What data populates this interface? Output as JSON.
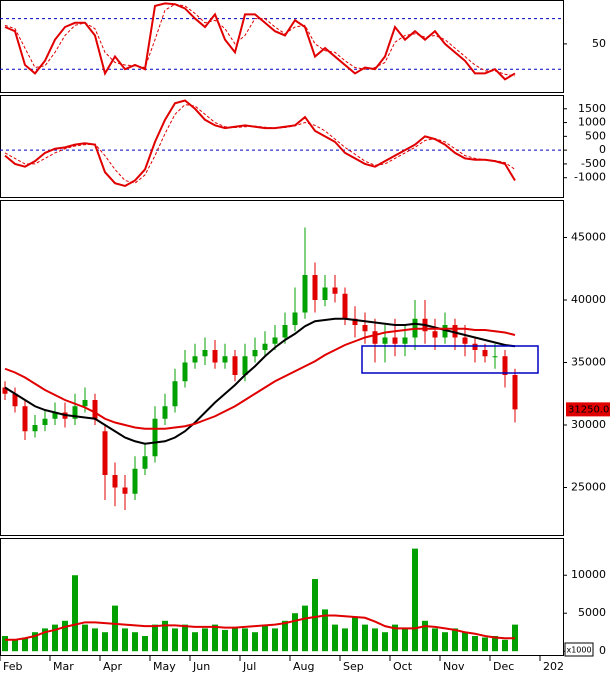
{
  "chart_data": [
    {
      "type": "line",
      "ylim": [
        -7,
        102
      ],
      "yticks": [
        50
      ],
      "hlines": [
        80,
        20
      ],
      "series": [
        {
          "color": "#e00000",
          "dash": false,
          "values": [
            70,
            65,
            25,
            15,
            30,
            55,
            70,
            75,
            75,
            60,
            15,
            35,
            20,
            25,
            20,
            95,
            98,
            97,
            92,
            80,
            70,
            85,
            55,
            40,
            85,
            85,
            75,
            65,
            60,
            78,
            70,
            35,
            45,
            35,
            25,
            15,
            22,
            20,
            35,
            70,
            55,
            65,
            55,
            65,
            50,
            40,
            30,
            15,
            15,
            20,
            8,
            15,
            null,
            null,
            null,
            null
          ]
        },
        {
          "color": "#e00000",
          "dash": true,
          "values": [
            72,
            68,
            45,
            22,
            24,
            40,
            60,
            72,
            75,
            68,
            40,
            28,
            25,
            24,
            22,
            55,
            90,
            97,
            95,
            86,
            75,
            78,
            68,
            50,
            60,
            80,
            80,
            70,
            62,
            70,
            72,
            50,
            42,
            40,
            30,
            22,
            20,
            22,
            28,
            52,
            60,
            62,
            58,
            60,
            55,
            45,
            35,
            25,
            18,
            18,
            14,
            12,
            null,
            null,
            null,
            null
          ]
        }
      ]
    },
    {
      "type": "line",
      "ylim": [
        -1700,
        2000
      ],
      "yticks": [
        1500,
        1000,
        500,
        0,
        -500,
        -1000
      ],
      "hlines": [
        0
      ],
      "series": [
        {
          "color": "#e00000",
          "dash": false,
          "values": [
            -200,
            -500,
            -600,
            -400,
            -100,
            50,
            100,
            200,
            250,
            200,
            -800,
            -1200,
            -1300,
            -1100,
            -700,
            300,
            1100,
            1700,
            1800,
            1500,
            1100,
            900,
            800,
            850,
            900,
            850,
            800,
            800,
            850,
            900,
            1200,
            700,
            500,
            300,
            -100,
            -300,
            -500,
            -600,
            -400,
            -200,
            0,
            200,
            500,
            400,
            200,
            -100,
            -300,
            -350,
            -350,
            -400,
            -500,
            -1100,
            null,
            null,
            null,
            null
          ]
        },
        {
          "color": "#e00000",
          "dash": true,
          "values": [
            -100,
            -300,
            -500,
            -500,
            -300,
            -100,
            50,
            150,
            200,
            220,
            -200,
            -700,
            -1100,
            -1200,
            -900,
            -200,
            600,
            1300,
            1650,
            1600,
            1300,
            1000,
            850,
            820,
            850,
            870,
            830,
            800,
            820,
            880,
            1000,
            900,
            700,
            400,
            100,
            -150,
            -400,
            -550,
            -500,
            -300,
            -100,
            100,
            350,
            420,
            300,
            50,
            -200,
            -300,
            -350,
            -380,
            -450,
            -700,
            null,
            null,
            null,
            null
          ]
        }
      ]
    },
    {
      "type": "candlestick",
      "ylim": [
        21200,
        48000
      ],
      "yticks": [
        45000,
        40000,
        35000,
        30000,
        25000
      ],
      "last_value_label": "31250.00",
      "categories": [
        "Feb",
        null,
        null,
        null,
        null,
        "Mar",
        null,
        null,
        null,
        null,
        "Apr",
        null,
        null,
        null,
        null,
        "May",
        null,
        null,
        null,
        "Jun",
        null,
        null,
        null,
        null,
        "Jul",
        null,
        null,
        null,
        null,
        "Aug",
        null,
        null,
        null,
        null,
        "Sep",
        null,
        null,
        null,
        null,
        "Oct",
        null,
        null,
        null,
        null,
        "Nov",
        null,
        null,
        null,
        null,
        "Dec",
        null,
        null,
        null,
        null,
        "202",
        null
      ],
      "up_color": "#00a000",
      "down_color": "#e00000",
      "open": [
        33000,
        32500,
        31500,
        29500,
        30000,
        30500,
        31000,
        30500,
        31500,
        32000,
        29500,
        26000,
        25000,
        24500,
        26500,
        27500,
        30500,
        31500,
        33500,
        35000,
        35500,
        36000,
        35000,
        35500,
        34000,
        35500,
        36000,
        36500,
        37000,
        38000,
        39000,
        42000,
        40000,
        41000,
        40500,
        38500,
        38000,
        37500,
        36500,
        37000,
        36500,
        37000,
        38500,
        37500,
        37000,
        38000,
        37000,
        36500,
        36000,
        35500,
        35500,
        34000,
        null,
        null,
        null,
        null
      ],
      "high": [
        33500,
        33000,
        32000,
        30800,
        31200,
        31800,
        31800,
        32500,
        33000,
        32500,
        30000,
        27000,
        26000,
        27500,
        28500,
        31500,
        32500,
        34500,
        36000,
        36500,
        37000,
        36800,
        36500,
        36000,
        36500,
        37000,
        37500,
        38000,
        39000,
        41000,
        45800,
        43000,
        42000,
        42000,
        41000,
        39500,
        39000,
        38500,
        38000,
        38500,
        38000,
        40000,
        40000,
        38500,
        39000,
        38500,
        38000,
        37000,
        36500,
        36500,
        36000,
        34500,
        null,
        null,
        null,
        null
      ],
      "low": [
        32000,
        31000,
        28800,
        29000,
        29500,
        30000,
        29800,
        30000,
        31000,
        30000,
        24000,
        23500,
        23200,
        24000,
        26000,
        27000,
        30000,
        31000,
        33000,
        34500,
        34800,
        34500,
        34500,
        33500,
        33500,
        35000,
        35500,
        36000,
        36500,
        37500,
        38500,
        39000,
        39500,
        39800,
        38000,
        37000,
        36500,
        35000,
        35000,
        35500,
        35500,
        36000,
        36500,
        36000,
        36500,
        36000,
        35500,
        35000,
        35000,
        34500,
        33000,
        30200,
        null,
        null,
        null,
        null
      ],
      "close": [
        32500,
        31500,
        29500,
        30000,
        30500,
        31000,
        30500,
        31500,
        32000,
        30500,
        26000,
        25000,
        24500,
        26500,
        27500,
        30500,
        31500,
        33500,
        35000,
        35500,
        36000,
        35000,
        35500,
        34000,
        35500,
        36000,
        36500,
        37000,
        38000,
        39000,
        42000,
        40000,
        41000,
        40500,
        38500,
        38000,
        37500,
        36500,
        37000,
        36500,
        37000,
        38500,
        37500,
        37000,
        38000,
        37000,
        36500,
        36000,
        35500,
        35500,
        34000,
        31250,
        null,
        null,
        null,
        null
      ],
      "series": [
        {
          "color": "#000000",
          "values": [
            33000,
            32500,
            32000,
            31500,
            31200,
            31000,
            30800,
            30700,
            30600,
            30500,
            30000,
            29500,
            29000,
            28700,
            28500,
            28600,
            28700,
            29000,
            29500,
            30200,
            31000,
            31800,
            32500,
            33200,
            34000,
            34700,
            35500,
            36200,
            36800,
            37300,
            37900,
            38300,
            38400,
            38500,
            38500,
            38400,
            38300,
            38200,
            38100,
            38000,
            38000,
            38100,
            38000,
            37800,
            37600,
            37400,
            37200,
            37000,
            36800,
            36600,
            36400,
            36300,
            null,
            null,
            null,
            null
          ]
        },
        {
          "color": "#e00000",
          "values": [
            34500,
            34200,
            33800,
            33300,
            32800,
            32400,
            32000,
            31700,
            31400,
            31000,
            30500,
            30200,
            30000,
            29800,
            29700,
            29700,
            29700,
            29800,
            29900,
            30100,
            30400,
            30700,
            31100,
            31500,
            32000,
            32500,
            33000,
            33500,
            33900,
            34300,
            34700,
            35100,
            35600,
            36000,
            36400,
            36700,
            37000,
            37200,
            37400,
            37500,
            37600,
            37700,
            37700,
            37700,
            37700,
            37700,
            37700,
            37600,
            37600,
            37500,
            37400,
            37200,
            null,
            null,
            null,
            null
          ]
        }
      ]
    },
    {
      "type": "bar",
      "ylim": [
        -500,
        14900
      ],
      "yticks": [
        10000,
        5000,
        0
      ],
      "unit_label": "x1000",
      "color": "#00a000",
      "values": [
        2000,
        1500,
        1800,
        2500,
        3000,
        3500,
        4000,
        10000,
        3500,
        3000,
        2500,
        6000,
        3000,
        2500,
        2000,
        3500,
        4000,
        3000,
        3500,
        2500,
        3000,
        3500,
        2800,
        3000,
        3000,
        2500,
        3500,
        3000,
        4000,
        5000,
        6000,
        9500,
        5500,
        3500,
        3000,
        4500,
        3500,
        3000,
        2500,
        3500,
        3000,
        13500,
        4000,
        3000,
        2500,
        3000,
        2500,
        2000,
        1800,
        2000,
        1500,
        3500,
        null,
        null,
        null,
        null
      ],
      "series": [
        {
          "color": "#e00000",
          "values": [
            1500,
            1500,
            1700,
            2000,
            2500,
            2800,
            3200,
            3500,
            3800,
            3800,
            3700,
            3600,
            3500,
            3400,
            3300,
            3300,
            3400,
            3400,
            3300,
            3200,
            3200,
            3200,
            3100,
            3100,
            3200,
            3300,
            3400,
            3500,
            3700,
            4000,
            4300,
            4500,
            4700,
            4700,
            4600,
            4500,
            4400,
            3900,
            3300,
            3000,
            3000,
            3000,
            3300,
            3200,
            3000,
            2800,
            2500,
            2300,
            2000,
            1800,
            1700,
            1700,
            null,
            null,
            null,
            null
          ]
        }
      ]
    }
  ]
}
